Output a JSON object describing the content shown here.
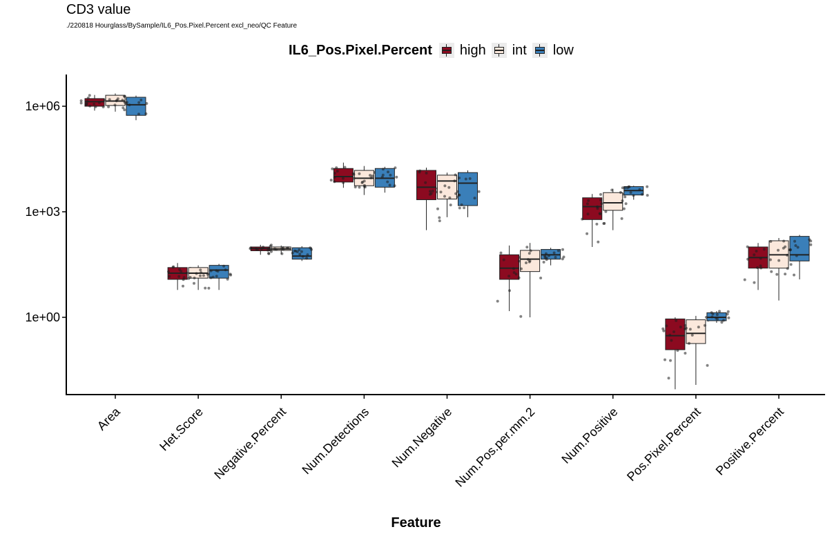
{
  "title": "CD3 value",
  "subtitle": "./220818 Hourglass/BySample/IL6_Pos.Pixel.Percent excl_neo/QC Feature",
  "legend": {
    "title": "IL6_Pos.Pixel.Percent",
    "items": [
      {
        "label": "high",
        "color": "#8C0A20"
      },
      {
        "label": "int",
        "color": "#FBE8DC"
      },
      {
        "label": "low",
        "color": "#3A7FB9"
      }
    ]
  },
  "chart_data": {
    "type": "boxplot",
    "title": "CD3 value",
    "xlabel": "Feature",
    "ylabel": "",
    "y_scale": "log10",
    "ylim": [
      0.001,
      10000000
    ],
    "yticks": [
      1,
      1000,
      1000000
    ],
    "ytick_labels": [
      "1e+00",
      "1e+03",
      "1e+06"
    ],
    "grid": false,
    "legend_position": "top",
    "categories": [
      "Area",
      "Het.Score",
      "Negative.Percent",
      "Num.Detections",
      "Num.Negative",
      "Num.Pos.per.mm.2",
      "Num.Positive",
      "Pos.Pixel.Percent",
      "Positive.Percent"
    ],
    "series": [
      {
        "name": "high",
        "color": "#8C0A20",
        "boxes": [
          {
            "min": 750000,
            "q1": 1000000,
            "median": 1350000,
            "q3": 1650000,
            "max": 2100000
          },
          {
            "min": 6,
            "q1": 12,
            "median": 18,
            "q3": 26,
            "max": 35
          },
          {
            "min": 60,
            "q1": 78,
            "median": 90,
            "q3": 100,
            "max": 115
          },
          {
            "min": 4800,
            "q1": 7000,
            "median": 10000,
            "q3": 17000,
            "max": 25000
          },
          {
            "min": 300,
            "q1": 2200,
            "median": 5000,
            "q3": 15000,
            "max": 18000
          },
          {
            "min": 1.5,
            "q1": 12,
            "median": 25,
            "q3": 60,
            "max": 110
          },
          {
            "min": 100,
            "q1": 600,
            "median": 1400,
            "q3": 2500,
            "max": 3200
          },
          {
            "min": 0.009,
            "q1": 0.12,
            "median": 0.3,
            "q3": 0.9,
            "max": 1.0
          },
          {
            "min": 6,
            "q1": 25,
            "median": 50,
            "q3": 100,
            "max": 130
          }
        ]
      },
      {
        "name": "int",
        "color": "#FBE8DC",
        "boxes": [
          {
            "min": 700000,
            "q1": 1050000,
            "median": 1400000,
            "q3": 2050000,
            "max": 2300000
          },
          {
            "min": 6,
            "q1": 13,
            "median": 18,
            "q3": 26,
            "max": 30
          },
          {
            "min": 62,
            "q1": 80,
            "median": 88,
            "q3": 100,
            "max": 110
          },
          {
            "min": 3000,
            "q1": 5500,
            "median": 9000,
            "q3": 15000,
            "max": 20000
          },
          {
            "min": 700,
            "q1": 2300,
            "median": 7500,
            "q3": 11000,
            "max": 13000
          },
          {
            "min": 1,
            "q1": 20,
            "median": 45,
            "q3": 80,
            "max": 130
          },
          {
            "min": 300,
            "q1": 1100,
            "median": 1800,
            "q3": 3500,
            "max": 4500
          },
          {
            "min": 0.012,
            "q1": 0.18,
            "median": 0.35,
            "q3": 0.85,
            "max": 1.1
          },
          {
            "min": 3,
            "q1": 25,
            "median": 60,
            "q3": 150,
            "max": 180
          }
        ]
      },
      {
        "name": "low",
        "color": "#3A7FB9",
        "boxes": [
          {
            "min": 400000,
            "q1": 550000,
            "median": 1100000,
            "q3": 1800000,
            "max": 2000000
          },
          {
            "min": 6,
            "q1": 13,
            "median": 22,
            "q3": 30,
            "max": 33
          },
          {
            "min": 40,
            "q1": 45,
            "median": 55,
            "q3": 95,
            "max": 105
          },
          {
            "min": 3500,
            "q1": 5000,
            "median": 9000,
            "q3": 17000,
            "max": 19000
          },
          {
            "min": 700,
            "q1": 1500,
            "median": 6500,
            "q3": 13000,
            "max": 15000
          },
          {
            "min": 30,
            "q1": 45,
            "median": 60,
            "q3": 85,
            "max": 95
          },
          {
            "min": 2200,
            "q1": 3000,
            "median": 4000,
            "q3": 5200,
            "max": 5500
          },
          {
            "min": 0.7,
            "q1": 0.8,
            "median": 1.0,
            "q3": 1.35,
            "max": 1.5
          },
          {
            "min": 12,
            "q1": 40,
            "median": 60,
            "q3": 200,
            "max": 220
          }
        ]
      }
    ]
  }
}
